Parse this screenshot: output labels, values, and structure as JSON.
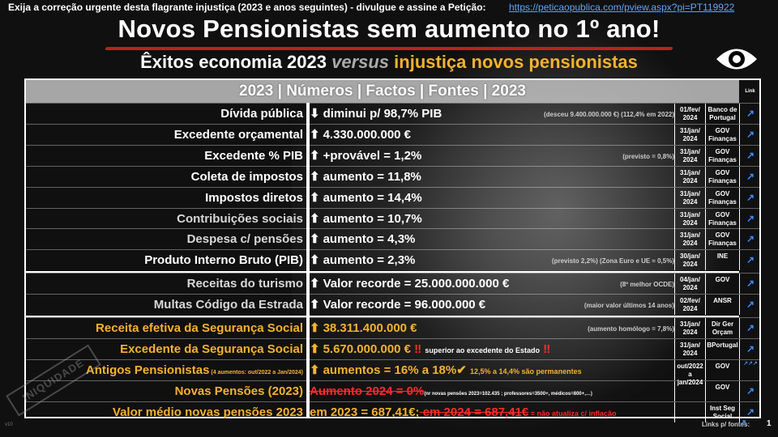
{
  "top": {
    "text": "Exija a correção urgente desta flagrante injustiça (2023 e anos seguintes) - divulgue e assine a ",
    "bold": "Petição:",
    "link": "https://peticaopublica.com/pview.aspx?pi=PT119922"
  },
  "title": "Novos Pensionistas sem aumento no 1º ano!",
  "subtitle": {
    "a": "Êxitos economia 2023 ",
    "b": "versus",
    "c": " injustiça novos pensionistas"
  },
  "table_header": "2023 | Números | Factos | Fontes | 2023",
  "link_header": "Link",
  "rows": [
    {
      "label": "Dívida pública",
      "arrow": "⬇",
      "value": "diminui p/ 98,7% PIB",
      "note": "(desceu 9.400.000.000 €) (112,4% em 2022)",
      "date": "01/fev/ 2024",
      "src": "Banco de Portugal",
      "link": "↗"
    },
    {
      "label": "Excedente orçamental",
      "arrow": "⬆",
      "value": "4.330.000.000 €",
      "note": "",
      "date": "31/jan/ 2024",
      "src": "GOV Finanças",
      "link": "↗"
    },
    {
      "label": "Excedente % PIB",
      "arrow": "⬆",
      "value": "+provável = 1,2%",
      "note": "(previsto = 0,8%)",
      "date": "31/jan/ 2024",
      "src": "GOV Finanças",
      "link": "↗"
    },
    {
      "label": "Coleta de impostos",
      "arrow": "⬆",
      "value": "aumento  = 11,8%",
      "note": "",
      "date": "31/jan/ 2024",
      "src": "GOV Finanças",
      "link": "↗"
    },
    {
      "label": "Impostos diretos",
      "arrow": "⬆",
      "value": "aumento  = 14,4%",
      "note": "",
      "date": "31/jan/ 2024",
      "src": "GOV Finanças",
      "link": "↗"
    },
    {
      "label": "Contribuições sociais",
      "arrow": "⬆",
      "value": "aumento  = 10,7%",
      "note": "",
      "date": "31/jan/ 2024",
      "src": "GOV Finanças",
      "link": "↗"
    },
    {
      "label": "Despesa c/ pensões",
      "arrow": "⬆",
      "value": "aumento  = 4,3%",
      "note": "",
      "date": "31/jan/ 2024",
      "src": "GOV Finanças",
      "link": "↗"
    },
    {
      "label": "Produto Interno Bruto (PIB)",
      "arrow": "⬆",
      "value": "aumento  = 2,3%",
      "note": "(previsto 2,2%) (Zona Euro e UE ≈ 0,5%)",
      "date": "30/jan/ 2024",
      "src": "INE",
      "link": "↗"
    },
    {
      "label": "Receitas do turismo",
      "arrow": "⬆",
      "value": "Valor recorde = 25.000.000.000 €",
      "note": "(8º melhor OCDE)",
      "date": "04/jan/ 2024",
      "src": "GOV",
      "link": "↗"
    },
    {
      "label": "Multas Código da Estrada",
      "arrow": "⬆",
      "value": "Valor recorde = 96.000.000 €",
      "note": "(maior valor últimos 14 anos)",
      "date": "02/fev/ 2024",
      "src": "ANSR",
      "link": "↗"
    },
    {
      "label": "Receita efetiva da Segurança Social",
      "arrow": "⬆",
      "value": "38.311.400.000 €",
      "note": "(aumento homólogo = 7,8%)",
      "date": "31/jan/ 2024",
      "src": "Dir Ger Orçam",
      "link": "↗"
    },
    {
      "label": "Excedente da Segurança Social",
      "arrow": "⬆",
      "value": "5.670.000.000 €",
      "value_extra": "superior ao excedente do Estado",
      "note": "",
      "date": "31/jan/ 2024",
      "src": "BPortugal",
      "link": "↗"
    },
    {
      "label": "Antigos Pensionistas",
      "label_small": "(4 aumentos: out/2022 a Jan/2024)",
      "arrow": "⬆",
      "value": "aumentos = 16% a 18%",
      "value_extra": "12,5% a 14,4% são permanentes",
      "note": "",
      "date": "out/2022 a jan/2024",
      "src": "GOV",
      "link": "↗↗↗"
    },
    {
      "label": "Novas Pensões (2023)",
      "value": "Aumento 2024 = 0%",
      "value_extra": "(nr novas pensões 2023=102.435 ; professores=3500+, médicos=800+,…)",
      "note": "",
      "date": "",
      "src": "GOV",
      "link": "↗"
    },
    {
      "label": "Valor médio novas pensões 2023",
      "value": "em 2023 = 687,41€;",
      "value_red": "em 2024 = 687,41€",
      "value_extra": " = não atualiza c/ inflação",
      "note": "",
      "date": "",
      "src": "Inst Seg Social",
      "link": "↗"
    }
  ],
  "stamp": "INIQUIDADE",
  "footer": "Links p/ fontes:",
  "page": "1",
  "version": "v10",
  "colors": {
    "gold": "#f5b22e",
    "red": "#ff2a2a",
    "link": "#3b8dff",
    "accent_underline": "#b22222"
  }
}
